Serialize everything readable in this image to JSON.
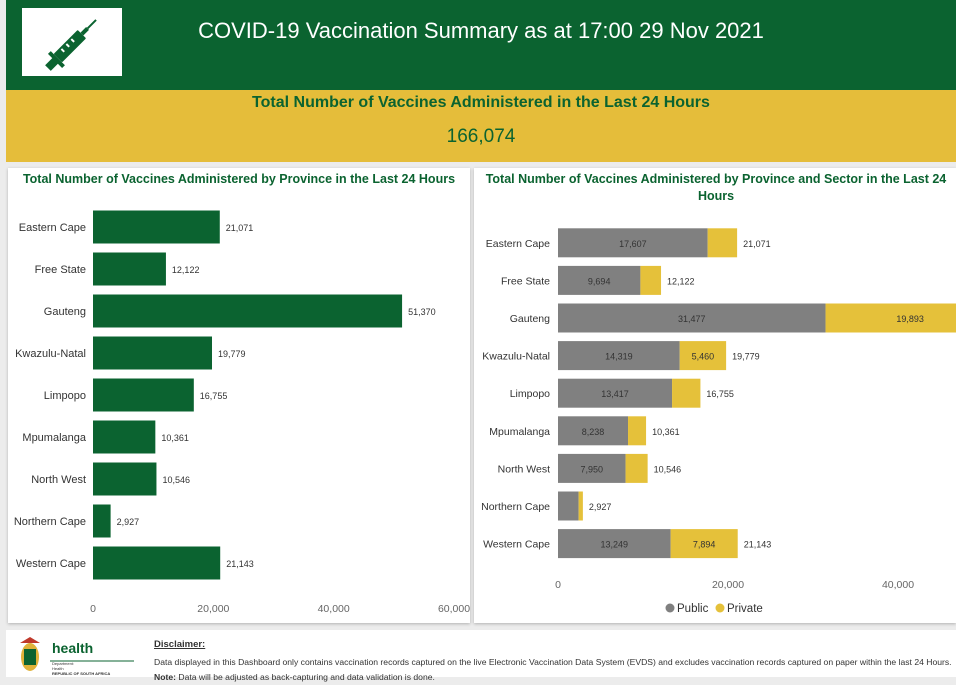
{
  "header": {
    "title": "COVID-19 Vaccination Summary as at 17:00 29 Nov 2021",
    "logo_icon": "syringe-icon"
  },
  "summary": {
    "title": "Total Number of Vaccines Administered in the Last 24 Hours",
    "value": "166,074"
  },
  "colors": {
    "green": "#0b6330",
    "gold": "#e5bd3a",
    "public": "#808080",
    "private": "#e5c13a"
  },
  "left_panel": {
    "title": "Total Number of Vaccines Administered by Province in the Last 24 Hours"
  },
  "right_panel": {
    "title": "Total Number of Vaccines Administered by Province and Sector in the Last 24 Hours"
  },
  "chart_data": [
    {
      "type": "bar",
      "orientation": "horizontal",
      "title": "Total Number of Vaccines Administered by Province in the Last 24 Hours",
      "categories": [
        "Eastern Cape",
        "Free State",
        "Gauteng",
        "Kwazulu-Natal",
        "Limpopo",
        "Mpumalanga",
        "North West",
        "Northern Cape",
        "Western Cape"
      ],
      "values": [
        21071,
        12122,
        51370,
        19779,
        16755,
        10361,
        10546,
        2927,
        21143
      ],
      "value_labels": [
        "21,071",
        "12,122",
        "51,370",
        "19,779",
        "16,755",
        "10,361",
        "10,546",
        "2,927",
        "21,143"
      ],
      "xlim": [
        0,
        60000
      ],
      "xticks": [
        0,
        20000,
        40000,
        60000
      ],
      "xtick_labels": [
        "0",
        "20,000",
        "40,000",
        "60,000"
      ],
      "grid": false
    },
    {
      "type": "bar",
      "orientation": "horizontal",
      "stacked": true,
      "title": "Total Number of Vaccines Administered by Province and Sector in the Last 24 Hours",
      "categories": [
        "Eastern Cape",
        "Free State",
        "Gauteng",
        "Kwazulu-Natal",
        "Limpopo",
        "Mpumalanga",
        "North West",
        "Northern Cape",
        "Western Cape"
      ],
      "series": [
        {
          "name": "Public",
          "values": [
            17607,
            9694,
            31477,
            14319,
            13417,
            8238,
            7950,
            2427,
            13249
          ],
          "labels": [
            "17,607",
            "9,694",
            "31,477",
            "14,319",
            "13,417",
            "8,238",
            "7,950",
            "",
            "13,249"
          ]
        },
        {
          "name": "Private",
          "values": [
            3464,
            2428,
            19893,
            5460,
            3338,
            2123,
            2596,
            500,
            7894
          ],
          "labels": [
            "",
            "",
            "19,893",
            "5,460",
            "",
            "",
            "",
            "",
            "7,894"
          ]
        }
      ],
      "totals": [
        "21,071",
        "12,122",
        "51,370",
        "19,779",
        "16,755",
        "10,361",
        "10,546",
        "2,927",
        "21,143"
      ],
      "xlim": [
        0,
        52000
      ],
      "xticks": [
        0,
        20000,
        40000
      ],
      "xtick_labels": [
        "0",
        "20,000",
        "40,000"
      ],
      "legend_position": "bottom",
      "grid": false
    }
  ],
  "footer": {
    "logo_text": "health",
    "logo_sub1": "Department:",
    "logo_sub2": "Health",
    "logo_sub3": "REPUBLIC OF SOUTH AFRICA",
    "disclaimer_title": "Disclaimer:",
    "disclaimer_text": "Data displayed in this Dashboard only contains vaccination records captured on the live Electronic Vaccination Data System (EVDS) and excludes vaccination records captured on paper within the last 24 Hours.",
    "note_label": "Note:",
    "note_text": "Data will be adjusted as back-capturing and data validation is done."
  }
}
